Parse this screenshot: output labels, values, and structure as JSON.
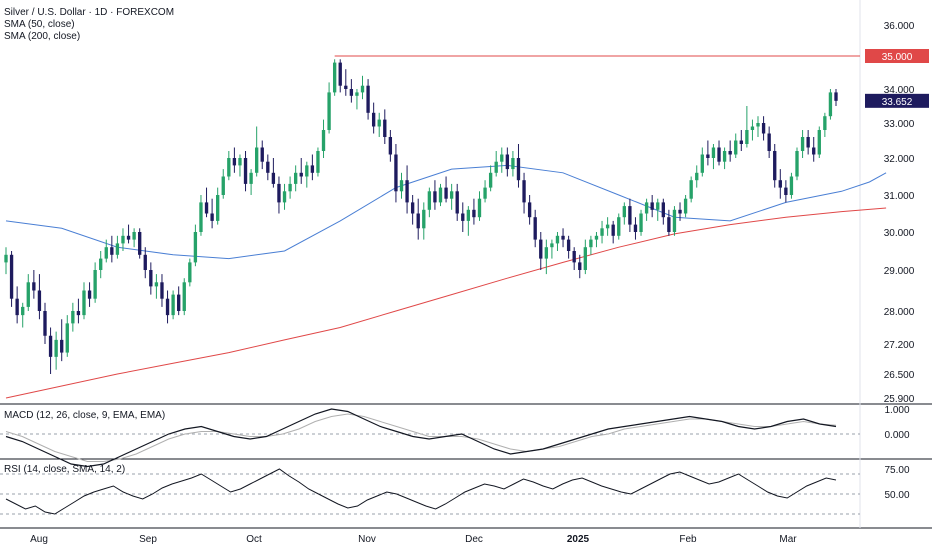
{
  "header": {
    "symbol_line": "Silver / U.S. Dollar · 1D · FOREXCOM",
    "sma50_label": "SMA (50, close)",
    "sma200_label": "SMA (200, close)"
  },
  "macd_panel": {
    "label": "MACD (12, 26, close, 9, EMA, EMA)"
  },
  "rsi_panel": {
    "label": "RSI (14, close, SMA, 14, 2)"
  },
  "colors": {
    "up": "#26a269",
    "down": "#1e1b5e",
    "sma50": "#4a7fd4",
    "sma200": "#e04848",
    "resistance": "#e04848",
    "price_badge": "#1e1b5e",
    "macd": "#131722",
    "signal": "#b0b0b0"
  },
  "chart_data": [
    {
      "type": "candlestick",
      "title": "Silver / U.S. Dollar · 1D · FOREXCOM",
      "x_months": [
        "Aug",
        "Sep",
        "Oct",
        "Nov",
        "Dec",
        "2025",
        "Feb",
        "Mar"
      ],
      "y_ticks": [
        "36.000",
        "35.000",
        "34.000",
        "33.000",
        "32.000",
        "31.000",
        "30.000",
        "29.000",
        "28.000",
        "27.200",
        "26.500",
        "25.900"
      ],
      "resistance_level": 35.0,
      "resistance_label": "35.000",
      "last_price": 33.652,
      "last_price_label": "33.652",
      "candles": [
        [
          29.2,
          29.6,
          28.9,
          29.4
        ],
        [
          29.4,
          29.5,
          28.1,
          28.3
        ],
        [
          28.3,
          28.6,
          27.7,
          27.9
        ],
        [
          27.9,
          28.2,
          27.6,
          28.1
        ],
        [
          28.1,
          28.9,
          28.0,
          28.7
        ],
        [
          28.7,
          29.0,
          28.3,
          28.5
        ],
        [
          28.5,
          28.9,
          27.8,
          28.0
        ],
        [
          28.0,
          28.2,
          27.2,
          27.4
        ],
        [
          27.4,
          27.6,
          26.5,
          26.9
        ],
        [
          26.9,
          27.5,
          26.6,
          27.3
        ],
        [
          27.3,
          27.8,
          26.8,
          27.0
        ],
        [
          27.0,
          27.9,
          26.9,
          27.7
        ],
        [
          27.7,
          28.2,
          27.5,
          28.0
        ],
        [
          28.0,
          28.3,
          27.7,
          27.9
        ],
        [
          27.9,
          28.7,
          27.8,
          28.5
        ],
        [
          28.5,
          28.7,
          28.1,
          28.3
        ],
        [
          28.3,
          29.2,
          28.2,
          29.0
        ],
        [
          29.0,
          29.5,
          28.8,
          29.3
        ],
        [
          29.3,
          29.8,
          29.2,
          29.6
        ],
        [
          29.6,
          29.9,
          29.2,
          29.4
        ],
        [
          29.4,
          29.9,
          29.3,
          29.7
        ],
        [
          29.7,
          30.1,
          29.5,
          29.9
        ],
        [
          29.9,
          30.2,
          29.7,
          29.8
        ],
        [
          29.8,
          30.1,
          29.6,
          30.0
        ],
        [
          30.0,
          30.1,
          29.3,
          29.4
        ],
        [
          29.4,
          29.6,
          28.8,
          29.0
        ],
        [
          29.0,
          29.2,
          28.4,
          28.6
        ],
        [
          28.6,
          28.9,
          28.3,
          28.7
        ],
        [
          28.7,
          28.9,
          28.1,
          28.3
        ],
        [
          28.3,
          28.5,
          27.7,
          27.9
        ],
        [
          27.9,
          28.5,
          27.8,
          28.4
        ],
        [
          28.4,
          28.6,
          27.9,
          28.0
        ],
        [
          28.0,
          28.8,
          27.9,
          28.7
        ],
        [
          28.7,
          29.3,
          28.6,
          29.2
        ],
        [
          29.2,
          30.2,
          29.1,
          30.0
        ],
        [
          30.0,
          31.0,
          29.9,
          30.8
        ],
        [
          30.8,
          31.2,
          30.4,
          30.5
        ],
        [
          30.5,
          30.9,
          30.1,
          30.3
        ],
        [
          30.3,
          31.2,
          30.2,
          31.0
        ],
        [
          31.0,
          31.7,
          30.9,
          31.5
        ],
        [
          31.5,
          32.2,
          31.4,
          32.0
        ],
        [
          32.0,
          32.3,
          31.6,
          31.8
        ],
        [
          31.8,
          32.1,
          31.5,
          32.0
        ],
        [
          32.0,
          32.2,
          31.1,
          31.3
        ],
        [
          31.3,
          31.7,
          31.0,
          31.6
        ],
        [
          31.6,
          32.9,
          31.5,
          32.3
        ],
        [
          32.3,
          32.5,
          31.7,
          31.9
        ],
        [
          31.9,
          32.1,
          31.4,
          31.6
        ],
        [
          31.6,
          32.0,
          31.2,
          31.3
        ],
        [
          31.3,
          31.5,
          30.5,
          30.8
        ],
        [
          30.8,
          31.3,
          30.6,
          31.1
        ],
        [
          31.1,
          31.5,
          30.9,
          31.3
        ],
        [
          31.3,
          31.8,
          31.1,
          31.6
        ],
        [
          31.6,
          32.0,
          31.3,
          31.5
        ],
        [
          31.5,
          31.9,
          31.2,
          31.8
        ],
        [
          31.8,
          32.1,
          31.4,
          31.6
        ],
        [
          31.6,
          32.3,
          31.5,
          32.2
        ],
        [
          32.2,
          33.1,
          32.0,
          32.8
        ],
        [
          32.8,
          34.2,
          32.7,
          33.9
        ],
        [
          33.9,
          34.9,
          33.8,
          34.8
        ],
        [
          34.8,
          34.9,
          33.9,
          34.1
        ],
        [
          34.1,
          34.6,
          33.8,
          34.0
        ],
        [
          34.0,
          34.3,
          33.6,
          33.8
        ],
        [
          33.8,
          34.0,
          33.4,
          33.9
        ],
        [
          33.9,
          34.4,
          33.7,
          34.1
        ],
        [
          34.1,
          34.3,
          33.1,
          33.3
        ],
        [
          33.3,
          33.6,
          32.7,
          32.9
        ],
        [
          32.9,
          33.3,
          32.6,
          33.1
        ],
        [
          33.1,
          33.4,
          32.4,
          32.6
        ],
        [
          32.6,
          32.8,
          31.9,
          32.1
        ],
        [
          32.1,
          32.4,
          30.8,
          31.1
        ],
        [
          31.1,
          31.6,
          30.9,
          31.4
        ],
        [
          31.4,
          31.8,
          30.5,
          30.8
        ],
        [
          30.8,
          31.0,
          30.2,
          30.5
        ],
        [
          30.5,
          30.9,
          29.8,
          30.1
        ],
        [
          30.1,
          30.8,
          29.8,
          30.6
        ],
        [
          30.6,
          31.2,
          30.4,
          31.1
        ],
        [
          31.1,
          31.4,
          30.6,
          30.8
        ],
        [
          30.8,
          31.3,
          30.7,
          31.2
        ],
        [
          31.2,
          31.5,
          30.8,
          30.9
        ],
        [
          30.9,
          31.3,
          30.6,
          31.1
        ],
        [
          31.1,
          31.3,
          30.3,
          30.5
        ],
        [
          30.5,
          30.8,
          30.0,
          30.3
        ],
        [
          30.3,
          30.7,
          29.9,
          30.6
        ],
        [
          30.6,
          30.9,
          30.2,
          30.4
        ],
        [
          30.4,
          31.1,
          30.3,
          30.9
        ],
        [
          30.9,
          31.4,
          30.8,
          31.2
        ],
        [
          31.2,
          31.8,
          31.1,
          31.6
        ],
        [
          31.6,
          32.2,
          31.5,
          31.9
        ],
        [
          31.9,
          32.3,
          31.6,
          32.1
        ],
        [
          32.1,
          32.3,
          31.5,
          31.7
        ],
        [
          31.7,
          32.2,
          31.5,
          32.0
        ],
        [
          32.0,
          32.4,
          31.2,
          31.4
        ],
        [
          31.4,
          31.6,
          30.5,
          30.8
        ],
        [
          30.8,
          31.0,
          30.2,
          30.4
        ],
        [
          30.4,
          30.6,
          29.6,
          29.8
        ],
        [
          29.8,
          30.0,
          29.0,
          29.3
        ],
        [
          29.3,
          29.8,
          28.9,
          29.6
        ],
        [
          29.6,
          29.8,
          29.3,
          29.7
        ],
        [
          29.7,
          30.0,
          29.5,
          29.9
        ],
        [
          29.9,
          30.1,
          29.6,
          29.8
        ],
        [
          29.8,
          29.9,
          29.3,
          29.5
        ],
        [
          29.5,
          29.6,
          29.0,
          29.2
        ],
        [
          29.2,
          29.4,
          28.8,
          29.0
        ],
        [
          29.0,
          29.8,
          28.9,
          29.6
        ],
        [
          29.6,
          29.9,
          29.4,
          29.8
        ],
        [
          29.8,
          30.0,
          29.6,
          29.9
        ],
        [
          29.9,
          30.3,
          29.7,
          30.1
        ],
        [
          30.1,
          30.4,
          29.9,
          30.2
        ],
        [
          30.2,
          30.3,
          29.7,
          29.9
        ],
        [
          29.9,
          30.5,
          29.8,
          30.4
        ],
        [
          30.4,
          30.8,
          30.2,
          30.7
        ],
        [
          30.7,
          30.9,
          30.0,
          30.2
        ],
        [
          30.2,
          30.4,
          29.8,
          30.0
        ],
        [
          30.0,
          30.6,
          29.9,
          30.5
        ],
        [
          30.5,
          30.9,
          30.3,
          30.8
        ],
        [
          30.8,
          31.0,
          30.4,
          30.6
        ],
        [
          30.6,
          30.9,
          30.3,
          30.8
        ],
        [
          30.8,
          30.9,
          30.2,
          30.4
        ],
        [
          30.4,
          30.6,
          29.9,
          30.0
        ],
        [
          30.0,
          30.7,
          29.9,
          30.6
        ],
        [
          30.6,
          30.8,
          30.3,
          30.5
        ],
        [
          30.5,
          31.0,
          30.4,
          30.9
        ],
        [
          30.9,
          31.5,
          30.8,
          31.4
        ],
        [
          31.4,
          31.8,
          31.2,
          31.6
        ],
        [
          31.6,
          32.3,
          31.5,
          32.1
        ],
        [
          32.1,
          32.5,
          31.8,
          32.0
        ],
        [
          32.0,
          32.4,
          31.7,
          32.3
        ],
        [
          32.3,
          32.5,
          31.8,
          31.9
        ],
        [
          31.9,
          32.3,
          31.7,
          32.2
        ],
        [
          32.2,
          32.5,
          31.9,
          32.1
        ],
        [
          32.1,
          32.7,
          32.0,
          32.5
        ],
        [
          32.5,
          32.8,
          32.2,
          32.4
        ],
        [
          32.4,
          33.5,
          32.3,
          32.8
        ],
        [
          32.8,
          33.1,
          32.5,
          32.9
        ],
        [
          32.9,
          33.2,
          32.6,
          33.0
        ],
        [
          33.0,
          33.2,
          32.5,
          32.7
        ],
        [
          32.7,
          32.9,
          32.0,
          32.2
        ],
        [
          32.2,
          32.4,
          31.2,
          31.4
        ],
        [
          31.4,
          31.7,
          30.9,
          31.2
        ],
        [
          31.2,
          31.4,
          30.8,
          31.0
        ],
        [
          31.0,
          31.6,
          30.9,
          31.5
        ],
        [
          31.5,
          32.3,
          31.4,
          32.2
        ],
        [
          32.2,
          32.8,
          32.0,
          32.6
        ],
        [
          32.6,
          32.8,
          32.1,
          32.3
        ],
        [
          32.3,
          32.6,
          31.9,
          32.1
        ],
        [
          32.1,
          32.9,
          32.0,
          32.8
        ],
        [
          32.8,
          33.3,
          32.6,
          33.2
        ],
        [
          33.2,
          34.0,
          33.1,
          33.9
        ],
        [
          33.9,
          34.0,
          33.5,
          33.652
        ]
      ],
      "sma50": [
        [
          0,
          30.3
        ],
        [
          10,
          30.1
        ],
        [
          20,
          29.6
        ],
        [
          30,
          29.4
        ],
        [
          40,
          29.3
        ],
        [
          50,
          29.5
        ],
        [
          60,
          30.3
        ],
        [
          70,
          31.2
        ],
        [
          80,
          31.7
        ],
        [
          90,
          31.8
        ],
        [
          100,
          31.6
        ],
        [
          110,
          31.0
        ],
        [
          120,
          30.4
        ],
        [
          130,
          30.3
        ],
        [
          140,
          30.8
        ],
        [
          150,
          31.1
        ],
        [
          155,
          31.35
        ],
        [
          158,
          31.6
        ]
      ],
      "sma200": [
        [
          0,
          25.9
        ],
        [
          10,
          26.2
        ],
        [
          20,
          26.5
        ],
        [
          30,
          26.75
        ],
        [
          40,
          27.0
        ],
        [
          50,
          27.3
        ],
        [
          60,
          27.6
        ],
        [
          70,
          28.0
        ],
        [
          80,
          28.4
        ],
        [
          90,
          28.8
        ],
        [
          100,
          29.2
        ],
        [
          110,
          29.6
        ],
        [
          120,
          29.95
        ],
        [
          130,
          30.2
        ],
        [
          140,
          30.4
        ],
        [
          150,
          30.55
        ],
        [
          158,
          30.65
        ]
      ]
    },
    {
      "type": "line",
      "title": "MACD (12, 26, close, 9, EMA, EMA)",
      "y_ticks": [
        "1.000",
        "0.000"
      ],
      "series": [
        {
          "name": "MACD",
          "values": [
            -0.1,
            -0.3,
            -0.6,
            -0.9,
            -1.2,
            -1.3,
            -1.2,
            -0.9,
            -0.6,
            -0.3,
            0.0,
            0.2,
            0.3,
            0.1,
            -0.1,
            -0.2,
            -0.1,
            0.2,
            0.5,
            0.8,
            1.0,
            0.9,
            0.6,
            0.3,
            0.1,
            -0.1,
            -0.2,
            -0.1,
            0.0,
            -0.3,
            -0.6,
            -0.8,
            -0.7,
            -0.6,
            -0.4,
            -0.2,
            0.0,
            0.2,
            0.3,
            0.4,
            0.5,
            0.6,
            0.7,
            0.6,
            0.5,
            0.3,
            0.2,
            0.3,
            0.5,
            0.6,
            0.4,
            0.3
          ]
        },
        {
          "name": "Signal",
          "values": [
            0.1,
            -0.1,
            -0.4,
            -0.7,
            -0.9,
            -1.1,
            -1.1,
            -1.0,
            -0.8,
            -0.5,
            -0.2,
            0.0,
            0.1,
            0.1,
            0.0,
            -0.1,
            -0.1,
            0.0,
            0.2,
            0.5,
            0.7,
            0.8,
            0.7,
            0.5,
            0.3,
            0.1,
            -0.1,
            -0.1,
            -0.1,
            -0.2,
            -0.4,
            -0.6,
            -0.7,
            -0.6,
            -0.5,
            -0.3,
            -0.1,
            0.0,
            0.2,
            0.3,
            0.4,
            0.5,
            0.6,
            0.6,
            0.5,
            0.4,
            0.3,
            0.3,
            0.4,
            0.5,
            0.4,
            0.35
          ]
        }
      ]
    },
    {
      "type": "line",
      "title": "RSI (14, close, SMA, 14, 2)",
      "y_ticks": [
        "75.00",
        "50.00"
      ],
      "series": [
        {
          "name": "RSI",
          "values": [
            45,
            40,
            35,
            38,
            32,
            30,
            36,
            42,
            48,
            52,
            55,
            58,
            52,
            48,
            45,
            50,
            56,
            60,
            63,
            66,
            70,
            64,
            58,
            52,
            55,
            60,
            65,
            70,
            75,
            68,
            62,
            55,
            50,
            45,
            40,
            36,
            38,
            44,
            48,
            52,
            50,
            46,
            42,
            38,
            35,
            40,
            46,
            52,
            56,
            60,
            58,
            55,
            60,
            65,
            62,
            58,
            55,
            60,
            64,
            66,
            62,
            58,
            55,
            52,
            50,
            55,
            60,
            65,
            70,
            72,
            68,
            64,
            60,
            62,
            66,
            70,
            64,
            58,
            52,
            48,
            46,
            52,
            58,
            62,
            66,
            64
          ]
        }
      ]
    }
  ]
}
